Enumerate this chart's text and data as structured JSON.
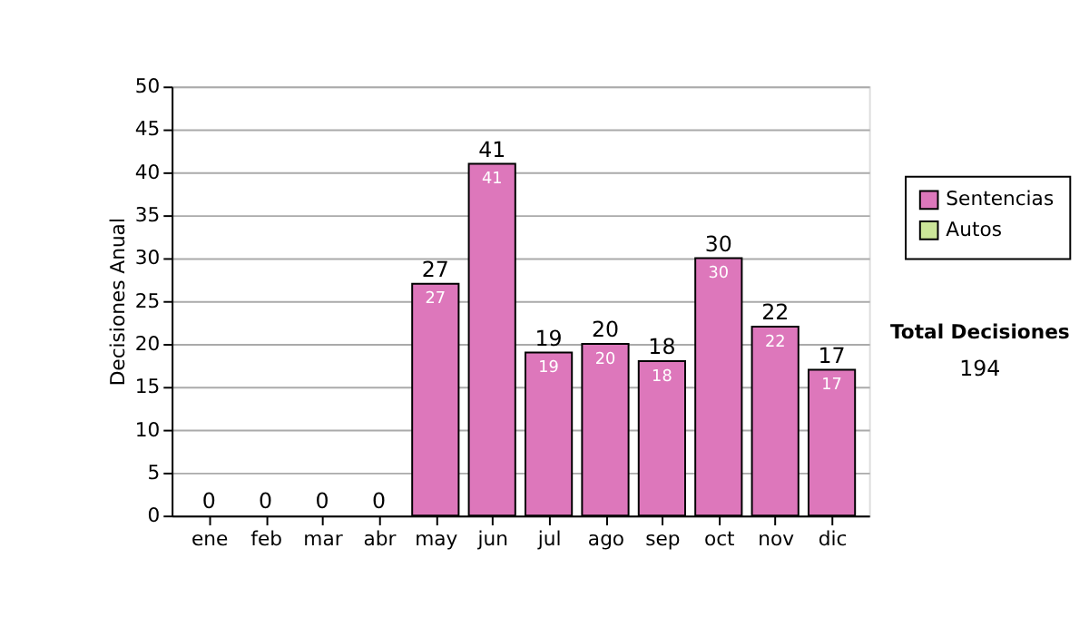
{
  "chart_data": {
    "type": "bar",
    "stacked": true,
    "ylabel": "Decisiones Anual",
    "categories": [
      "ene",
      "feb",
      "mar",
      "abr",
      "may",
      "jun",
      "jul",
      "ago",
      "sep",
      "oct",
      "nov",
      "dic"
    ],
    "series": [
      {
        "name": "Sentencias",
        "color": "#dd77bb",
        "values": [
          0,
          0,
          0,
          0,
          27,
          41,
          19,
          20,
          18,
          30,
          22,
          17
        ],
        "value_labels": [
          null,
          null,
          null,
          null,
          "27",
          "41",
          "19",
          "20",
          "18",
          "30",
          "22",
          "17"
        ]
      },
      {
        "name": "Autos",
        "color": "#cce699",
        "values": [
          0,
          0,
          0,
          0,
          0,
          0,
          0,
          0,
          0,
          0,
          0,
          0
        ]
      }
    ],
    "totals": [
      "0",
      "0",
      "0",
      "0",
      "27",
      "41",
      "19",
      "20",
      "18",
      "30",
      "22",
      "17"
    ],
    "ylim": [
      0,
      50
    ],
    "yticks": [
      0,
      5,
      10,
      15,
      20,
      25,
      30,
      35,
      40,
      45,
      50
    ],
    "grid": "y",
    "legend": "right",
    "annotations": [
      "Total Decisiones",
      "194"
    ]
  }
}
